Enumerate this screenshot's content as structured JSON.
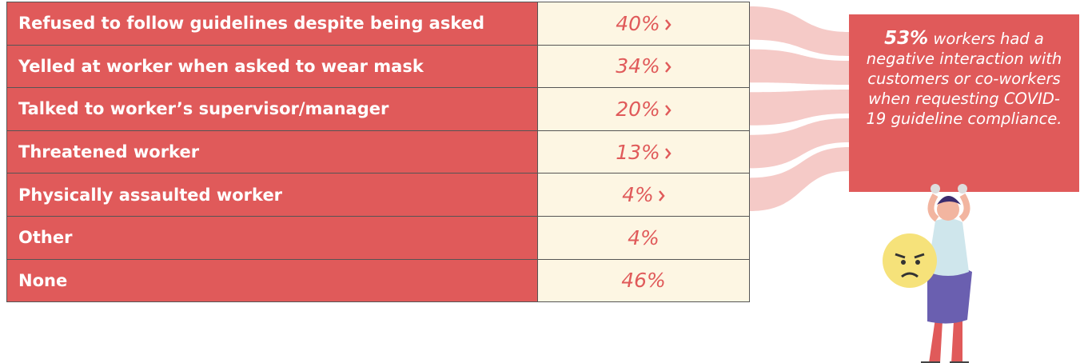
{
  "table": {
    "rows": [
      {
        "label": "Refused to follow guidelines despite being asked",
        "value": "40%"
      },
      {
        "label": "Yelled at worker when asked to wear mask",
        "value": "34%"
      },
      {
        "label": "Talked to worker’s supervisor/manager",
        "value": "20%"
      },
      {
        "label": "Threatened worker",
        "value": "13%"
      },
      {
        "label": "Physically assaulted worker",
        "value": "4%"
      },
      {
        "label": "Other",
        "value": "4%"
      },
      {
        "label": "None",
        "value": "46%"
      }
    ]
  },
  "callout": {
    "highlight": "53%",
    "text": "workers had a negative interaction with customers or co-workers when requesting COVID-19 guideline compliance."
  }
}
